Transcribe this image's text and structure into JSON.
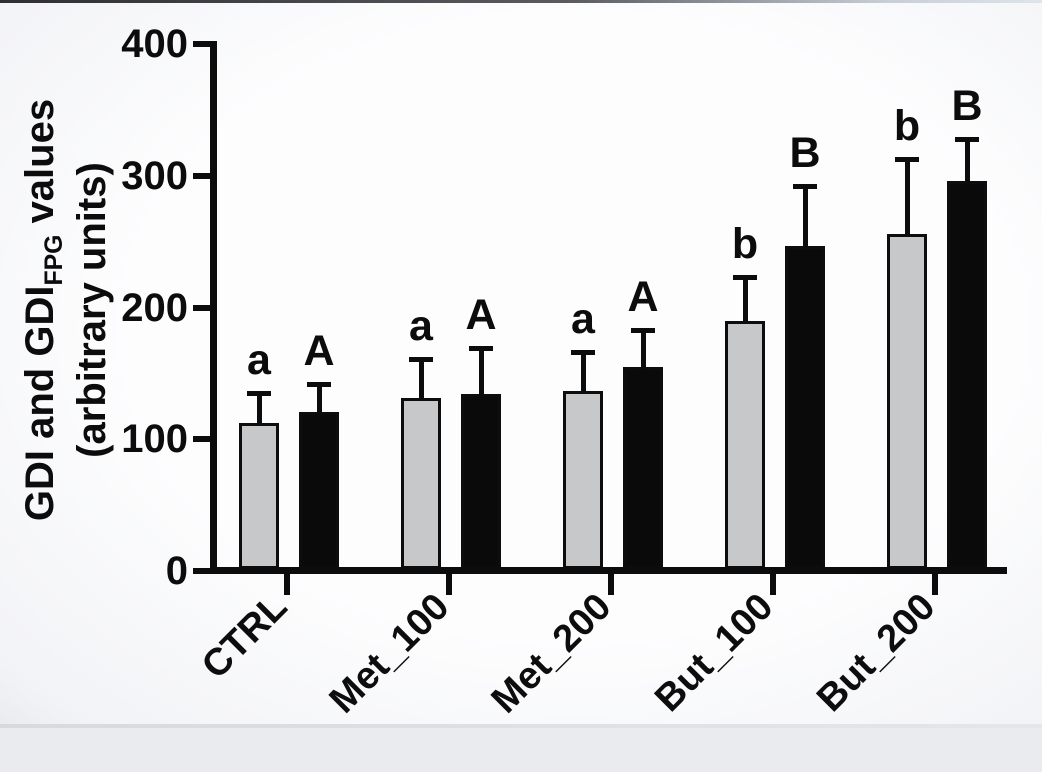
{
  "y_axis_title": {
    "line1_prefix": "GDI and GDI",
    "line1_sub": "FPG",
    "line1_suffix": " values",
    "line2": "(arbitrary units)"
  },
  "chart_data": {
    "type": "bar",
    "title": "",
    "xlabel": "",
    "ylabel": "GDI and GDI_FPG values (arbitrary units)",
    "categories": [
      "CTRL",
      "Met_100",
      "Met_200",
      "But_100",
      "But_200"
    ],
    "series": [
      {
        "name": "GDI",
        "fill": "#c7c8ca",
        "values": [
          112,
          131,
          137,
          190,
          256
        ],
        "errors_upper": [
          23,
          30,
          29,
          33,
          57
        ],
        "letters": [
          "a",
          "a",
          "a",
          "b",
          "b"
        ]
      },
      {
        "name": "GDI_FPG",
        "fill": "#0a0a0a",
        "values": [
          121,
          134,
          155,
          247,
          296
        ],
        "errors_upper": [
          21,
          35,
          28,
          45,
          32
        ],
        "letters": [
          "A",
          "A",
          "A",
          "B",
          "B"
        ]
      }
    ],
    "y_ticks": [
      0,
      100,
      200,
      300,
      400
    ],
    "ylim": [
      0,
      400
    ],
    "error_bars": "upper only, with caps",
    "legend": "none",
    "grid": false
  },
  "colors": {
    "axis": "#0c0c0c",
    "bar_gray_fill": "#c7c8ca",
    "bar_black_fill": "#0a0a0a",
    "bar_border": "#0d0d0d",
    "background": "#fdfdfe"
  }
}
